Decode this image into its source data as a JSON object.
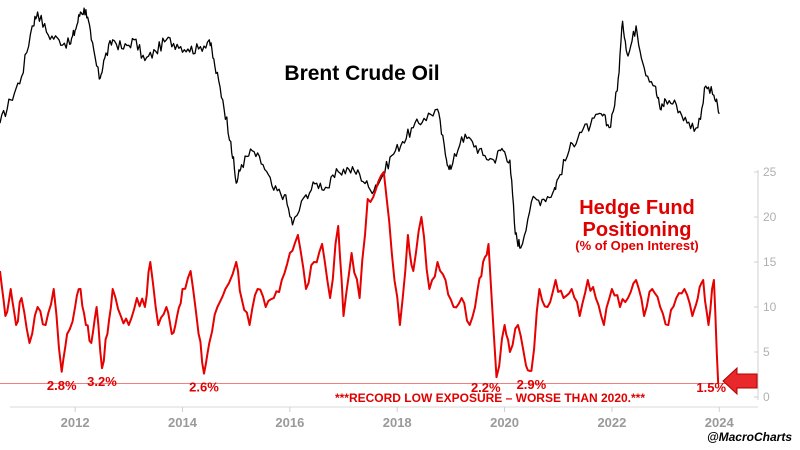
{
  "chart_data": {
    "type": "line",
    "oil_title": "Brent Crude Oil",
    "hf_title_line1": "Hedge Fund",
    "hf_title_line2": "Positioning",
    "hf_subtitle": "(% of Open Interest)",
    "note": "***RECORD LOW EXPOSURE – WORSE THAN 2020.***",
    "credit": "@MacroCharts",
    "x_ticks": [
      "2012",
      "2014",
      "2016",
      "2018",
      "2020",
      "2022",
      "2024"
    ],
    "x_range": [
      2010.6,
      2024.2
    ],
    "y_ticks": [
      "0",
      "5",
      "10",
      "15",
      "20",
      "25"
    ],
    "ylim": [
      0,
      25
    ],
    "reference_line": 1.5,
    "colors": {
      "oil": "#000000",
      "positioning": "#e60000",
      "axis": "#d0d0d0"
    },
    "annotations": [
      {
        "label": "2.8%",
        "x": 2011.75,
        "y": 2.8
      },
      {
        "label": "3.2%",
        "x": 2012.5,
        "y": 3.2
      },
      {
        "label": "2.6%",
        "x": 2014.4,
        "y": 2.6
      },
      {
        "label": "2.2%",
        "x": 2019.65,
        "y": 2.2
      },
      {
        "label": "2.9%",
        "x": 2020.5,
        "y": 2.9
      },
      {
        "label": "1.5%",
        "x": 2023.85,
        "y": 1.5
      }
    ],
    "series": [
      {
        "name": "Brent Crude Oil",
        "axis": "price",
        "x": [
          2010.6,
          2010.8,
          2011.0,
          2011.2,
          2011.3,
          2011.5,
          2011.7,
          2011.9,
          2012.0,
          2012.1,
          2012.2,
          2012.3,
          2012.45,
          2012.55,
          2012.7,
          2012.9,
          2013.1,
          2013.3,
          2013.5,
          2013.7,
          2013.9,
          2014.1,
          2014.3,
          2014.5,
          2014.6,
          2014.75,
          2014.9,
          2015.0,
          2015.1,
          2015.3,
          2015.5,
          2015.7,
          2015.9,
          2016.05,
          2016.3,
          2016.5,
          2016.7,
          2016.9,
          2017.1,
          2017.3,
          2017.5,
          2017.7,
          2017.9,
          2018.1,
          2018.3,
          2018.5,
          2018.75,
          2018.9,
          2019.0,
          2019.2,
          2019.4,
          2019.6,
          2019.8,
          2019.95,
          2020.1,
          2020.2,
          2020.3,
          2020.5,
          2020.7,
          2020.9,
          2021.0,
          2021.2,
          2021.4,
          2021.6,
          2021.8,
          2021.95,
          2022.1,
          2022.2,
          2022.3,
          2022.45,
          2022.6,
          2022.8,
          2022.9,
          2023.0,
          2023.2,
          2023.4,
          2023.6,
          2023.75,
          2023.9,
          2024.0
        ],
        "y": [
          76,
          86,
          96,
          118,
          124,
          114,
          112,
          110,
          116,
          124,
          125,
          112,
          95,
          104,
          112,
          108,
          112,
          103,
          107,
          112,
          110,
          108,
          108,
          112,
          101,
          86,
          68,
          50,
          58,
          64,
          58,
          47,
          45,
          32,
          45,
          50,
          48,
          55,
          56,
          54,
          47,
          52,
          62,
          68,
          74,
          78,
          82,
          62,
          56,
          70,
          68,
          62,
          60,
          65,
          60,
          28,
          22,
          42,
          43,
          46,
          52,
          64,
          72,
          75,
          80,
          74,
          90,
          120,
          105,
          118,
          100,
          92,
          82,
          86,
          84,
          76,
          74,
          92,
          88,
          80
        ]
      },
      {
        "name": "Hedge Fund Positioning",
        "axis": "percent",
        "x": [
          2010.6,
          2010.7,
          2010.8,
          2010.9,
          2011.0,
          2011.15,
          2011.3,
          2011.45,
          2011.6,
          2011.75,
          2011.85,
          2012.0,
          2012.1,
          2012.2,
          2012.3,
          2012.4,
          2012.5,
          2012.6,
          2012.7,
          2012.85,
          2013.0,
          2013.15,
          2013.3,
          2013.4,
          2013.55,
          2013.7,
          2013.8,
          2013.9,
          2014.0,
          2014.15,
          2014.3,
          2014.4,
          2014.5,
          2014.65,
          2014.8,
          2015.0,
          2015.1,
          2015.25,
          2015.4,
          2015.55,
          2015.7,
          2015.85,
          2016.0,
          2016.15,
          2016.3,
          2016.45,
          2016.6,
          2016.75,
          2016.9,
          2017.0,
          2017.15,
          2017.3,
          2017.45,
          2017.6,
          2017.75,
          2017.9,
          2018.05,
          2018.2,
          2018.3,
          2018.45,
          2018.6,
          2018.75,
          2018.9,
          2019.05,
          2019.2,
          2019.35,
          2019.5,
          2019.6,
          2019.7,
          2019.85,
          2020.0,
          2020.1,
          2020.25,
          2020.4,
          2020.5,
          2020.65,
          2020.8,
          2020.95,
          2021.1,
          2021.25,
          2021.4,
          2021.55,
          2021.7,
          2021.85,
          2022.0,
          2022.15,
          2022.3,
          2022.45,
          2022.6,
          2022.75,
          2022.9,
          2023.05,
          2023.2,
          2023.35,
          2023.5,
          2023.6,
          2023.7,
          2023.8,
          2023.9,
          2023.98
        ],
        "y": [
          14,
          9,
          12,
          8,
          11,
          6,
          10,
          8,
          12,
          2.8,
          7,
          10,
          12,
          8,
          6,
          10,
          3.2,
          7,
          12,
          9,
          8,
          11,
          10,
          15,
          8,
          10,
          7,
          9,
          12,
          14,
          7,
          2.6,
          6,
          10,
          12,
          15,
          11,
          8,
          12,
          10,
          11,
          13,
          16,
          18,
          12,
          15,
          17,
          11,
          19,
          9,
          16,
          11,
          22,
          23,
          25,
          16,
          8,
          18,
          14,
          20,
          12,
          15,
          13,
          10,
          11,
          8,
          12,
          15,
          17,
          2.2,
          8,
          5,
          8,
          3.5,
          2.9,
          12,
          10,
          13,
          11,
          12,
          9,
          13,
          11,
          8,
          12,
          10,
          11,
          13,
          9,
          12,
          10,
          8,
          11,
          12,
          9,
          11,
          13,
          8,
          13,
          1.5
        ]
      }
    ]
  }
}
